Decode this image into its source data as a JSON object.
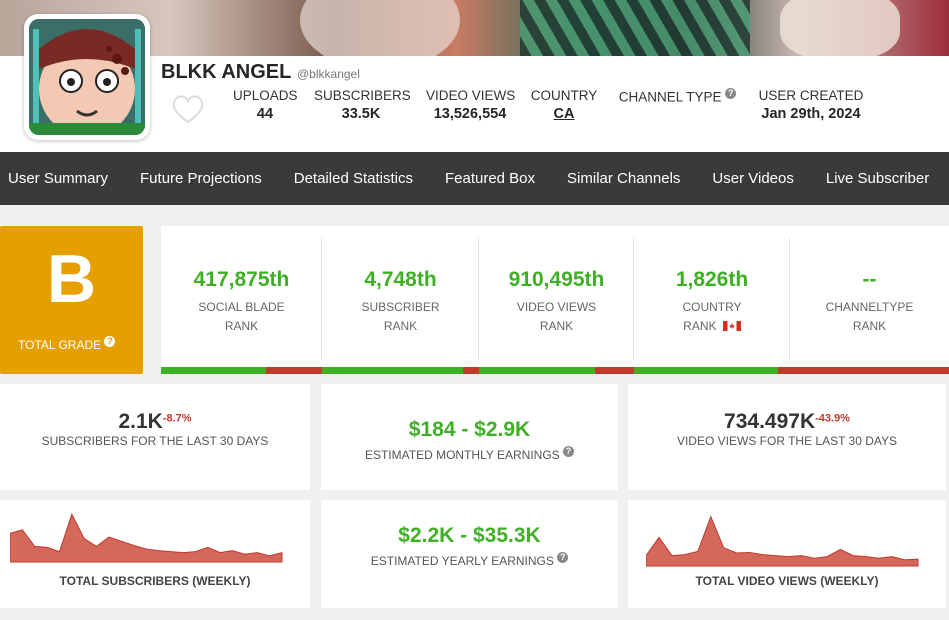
{
  "channel": {
    "name": "BLKK ANGEL",
    "handle": "@blkkangel"
  },
  "header_stats": [
    {
      "label": "UPLOADS",
      "value": "44"
    },
    {
      "label": "SUBSCRIBERS",
      "value": "33.5K"
    },
    {
      "label": "VIDEO VIEWS",
      "value": "13,526,554"
    },
    {
      "label": "COUNTRY",
      "value": "CA"
    },
    {
      "label": "CHANNEL TYPE",
      "value": ""
    },
    {
      "label": "USER CREATED",
      "value": "Jan 29th, 2024"
    }
  ],
  "nav": [
    "User Summary",
    "Future Projections",
    "Detailed Statistics",
    "Featured Box",
    "Similar Channels",
    "User Videos",
    "Live Subscriber"
  ],
  "grade": {
    "letter": "B",
    "label": "TOTAL GRADE",
    "color": "#e5a000"
  },
  "ranks": [
    {
      "value": "417,875th",
      "line1": "SOCIAL BLADE",
      "line2": "RANK",
      "fill": 0.65
    },
    {
      "value": "4,748th",
      "line1": "SUBSCRIBER",
      "line2": "RANK",
      "fill": 0.9
    },
    {
      "value": "910,495th",
      "line1": "VIDEO VIEWS",
      "line2": "RANK",
      "fill": 0.75
    },
    {
      "value": "1,826th",
      "line1": "COUNTRY",
      "line2": "RANK",
      "fill": 0.92
    },
    {
      "value": "--",
      "line1": "CHANNELTYPE",
      "line2": "RANK",
      "fill": 0.0
    }
  ],
  "summary": {
    "subs30": {
      "value": "2.1K",
      "delta": "-8.7%",
      "label": "SUBSCRIBERS FOR THE LAST 30 DAYS"
    },
    "monthly": {
      "value": "$184  -  $2.9K",
      "label": "ESTIMATED MONTHLY EARNINGS"
    },
    "views30": {
      "value": "734.497K",
      "delta": "-43.9%",
      "label": "VIDEO VIEWS FOR THE LAST 30 DAYS"
    },
    "yearly": {
      "value": "$2.2K  -  $35.3K",
      "label": "ESTIMATED YEARLY EARNINGS"
    }
  },
  "chart_data": [
    {
      "type": "area",
      "title": "TOTAL SUBSCRIBERS (WEEKLY)",
      "values": [
        0.55,
        0.62,
        0.3,
        0.28,
        0.2,
        0.92,
        0.45,
        0.3,
        0.48,
        0.4,
        0.32,
        0.25,
        0.22,
        0.2,
        0.18,
        0.2,
        0.28,
        0.18,
        0.22,
        0.15,
        0.18,
        0.12,
        0.18
      ]
    },
    {
      "type": "area",
      "title": "TOTAL VIDEO VIEWS (WEEKLY)",
      "values": [
        0.2,
        0.55,
        0.2,
        0.22,
        0.28,
        0.95,
        0.35,
        0.25,
        0.26,
        0.22,
        0.2,
        0.18,
        0.2,
        0.15,
        0.18,
        0.32,
        0.2,
        0.18,
        0.15,
        0.18,
        0.12,
        0.13
      ]
    }
  ],
  "colors": {
    "green": "#3eb024",
    "red": "#c0392b",
    "nav": "#3a3a3a",
    "chart": "#d4685a"
  }
}
